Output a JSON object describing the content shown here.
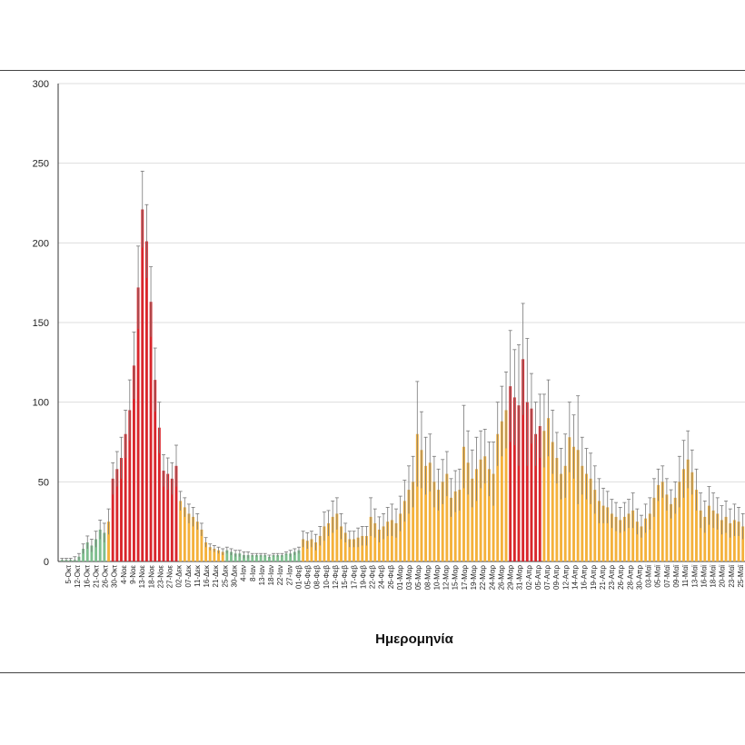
{
  "chart_data": {
    "type": "bar",
    "title": "",
    "xlabel": "Ημερομηνία",
    "ylabel": "",
    "ylim": [
      0,
      300
    ],
    "yticks": [
      0,
      50,
      100,
      150,
      200,
      250,
      300
    ],
    "grid": true,
    "colors": {
      "green": "#7fbf8f",
      "orange": "#f4b13b",
      "red": "#d9262c",
      "error": "#777777",
      "grid": "#dddddd",
      "axis": "#333333"
    },
    "tick_labels": [
      "5-Οκτ",
      "12-Οκτ",
      "16-Οκτ",
      "21-Οκτ",
      "26-Οκτ",
      "30-Οκτ",
      "4-Νοε",
      "9-Νοε",
      "13-Νοε",
      "18-Νοε",
      "23-Νοε",
      "27-Νοε",
      "02-Δεκ",
      "07-Δεκ",
      "11-Δεκ",
      "16-Δεκ",
      "21-Δεκ",
      "25-Δεκ",
      "30-Δεκ",
      "4-Ιαν",
      "8-Ιαν",
      "13-Ιαν",
      "18-Ιαν",
      "22-Ιαν",
      "27-Ιαν",
      "01-Φεβ",
      "05-Φεβ",
      "08-Φεβ",
      "10-Φεβ",
      "12-Φεβ",
      "15-Φεβ",
      "17-Φεβ",
      "19-Φεβ",
      "22-Φεβ",
      "24-Φεβ",
      "26-Φεβ",
      "01-Μαρ",
      "03-Μαρ",
      "05-Μαρ",
      "08-Μαρ",
      "10-Μαρ",
      "12-Μαρ",
      "15-Μαρ",
      "17-Μαρ",
      "19-Μαρ",
      "22-Μαρ",
      "24-Μαρ",
      "26-Μαρ",
      "29-Μαρ",
      "31-Μαρ",
      "02-Απρ",
      "05-Απρ",
      "07-Απρ",
      "09-Απρ",
      "12-Απρ",
      "14-Απρ",
      "16-Απρ",
      "19-Απρ",
      "21-Απρ",
      "23-Απρ",
      "26-Απρ",
      "28-Απρ",
      "30-Απρ",
      "03-Μαϊ",
      "05-Μαϊ",
      "07-Μαϊ",
      "09-Μαϊ",
      "11-Μαϊ",
      "13-Μαϊ",
      "16-Μαϊ",
      "18-Μαϊ",
      "20-Μαϊ",
      "23-Μαϊ",
      "25-Μαϊ"
    ],
    "values": [
      1,
      1,
      1,
      1,
      3,
      8,
      12,
      10,
      14,
      20,
      18,
      25,
      52,
      58,
      65,
      80,
      95,
      123,
      172,
      221,
      201,
      163,
      114,
      84,
      57,
      55,
      52,
      60,
      38,
      34,
      30,
      28,
      25,
      20,
      12,
      9,
      8,
      7,
      6,
      7,
      6,
      5,
      5,
      4,
      4,
      4,
      4,
      4,
      4,
      3,
      4,
      4,
      4,
      5,
      5,
      6,
      7,
      14,
      13,
      14,
      12,
      16,
      22,
      24,
      28,
      30,
      22,
      18,
      14,
      14,
      15,
      16,
      16,
      28,
      24,
      20,
      22,
      25,
      26,
      24,
      30,
      38,
      45,
      50,
      80,
      70,
      60,
      62,
      50,
      45,
      50,
      55,
      40,
      44,
      45,
      72,
      62,
      52,
      58,
      64,
      66,
      58,
      55,
      80,
      88,
      95,
      110,
      103,
      98,
      127,
      100,
      96,
      80,
      85,
      82,
      90,
      75,
      65,
      55,
      60,
      78,
      72,
      70,
      60,
      55,
      52,
      45,
      38,
      35,
      34,
      30,
      28,
      26,
      28,
      30,
      32,
      25,
      22,
      27,
      30,
      40,
      48,
      50,
      42,
      36,
      40,
      50,
      58,
      64,
      56,
      45,
      32,
      28,
      35,
      32,
      30,
      26,
      28,
      24,
      26,
      25,
      22
    ],
    "errors": [
      1,
      1,
      1,
      2,
      2,
      3,
      4,
      4,
      5,
      6,
      6,
      8,
      10,
      11,
      13,
      15,
      19,
      21,
      26,
      24,
      23,
      22,
      20,
      16,
      10,
      10,
      10,
      13,
      6,
      6,
      6,
      6,
      5,
      4,
      3,
      2,
      2,
      2,
      2,
      2,
      2,
      2,
      2,
      2,
      2,
      1,
      1,
      1,
      1,
      1,
      1,
      1,
      1,
      1,
      2,
      2,
      2,
      5,
      5,
      5,
      5,
      6,
      9,
      8,
      10,
      10,
      8,
      6,
      5,
      5,
      6,
      6,
      6,
      12,
      9,
      8,
      8,
      9,
      10,
      9,
      11,
      13,
      15,
      16,
      33,
      24,
      18,
      18,
      16,
      13,
      14,
      14,
      12,
      13,
      13,
      26,
      20,
      18,
      20,
      18,
      17,
      17,
      20,
      20,
      22,
      24,
      35,
      30,
      38,
      35,
      40,
      22,
      20,
      20,
      23,
      24,
      20,
      16,
      16,
      20,
      22,
      20,
      34,
      18,
      16,
      16,
      15,
      14,
      11,
      10,
      9,
      9,
      8,
      9,
      9,
      11,
      8,
      7,
      9,
      10,
      12,
      10,
      10,
      10,
      9,
      10,
      16,
      18,
      18,
      14,
      13,
      11,
      10,
      12,
      11,
      10,
      9,
      10,
      9,
      10,
      9,
      8
    ],
    "color_series": [
      {
        "from": 0,
        "to": 10,
        "color": "green"
      },
      {
        "from": 11,
        "to": 11,
        "color": "orange"
      },
      {
        "from": 12,
        "to": 27,
        "color": "red"
      },
      {
        "from": 28,
        "to": 38,
        "color": "orange"
      },
      {
        "from": 39,
        "to": 56,
        "color": "green"
      },
      {
        "from": 57,
        "to": 105,
        "color": "orange"
      },
      {
        "from": 106,
        "to": 113,
        "color": "red"
      },
      {
        "from": 114,
        "to": 161,
        "color": "orange"
      }
    ]
  }
}
